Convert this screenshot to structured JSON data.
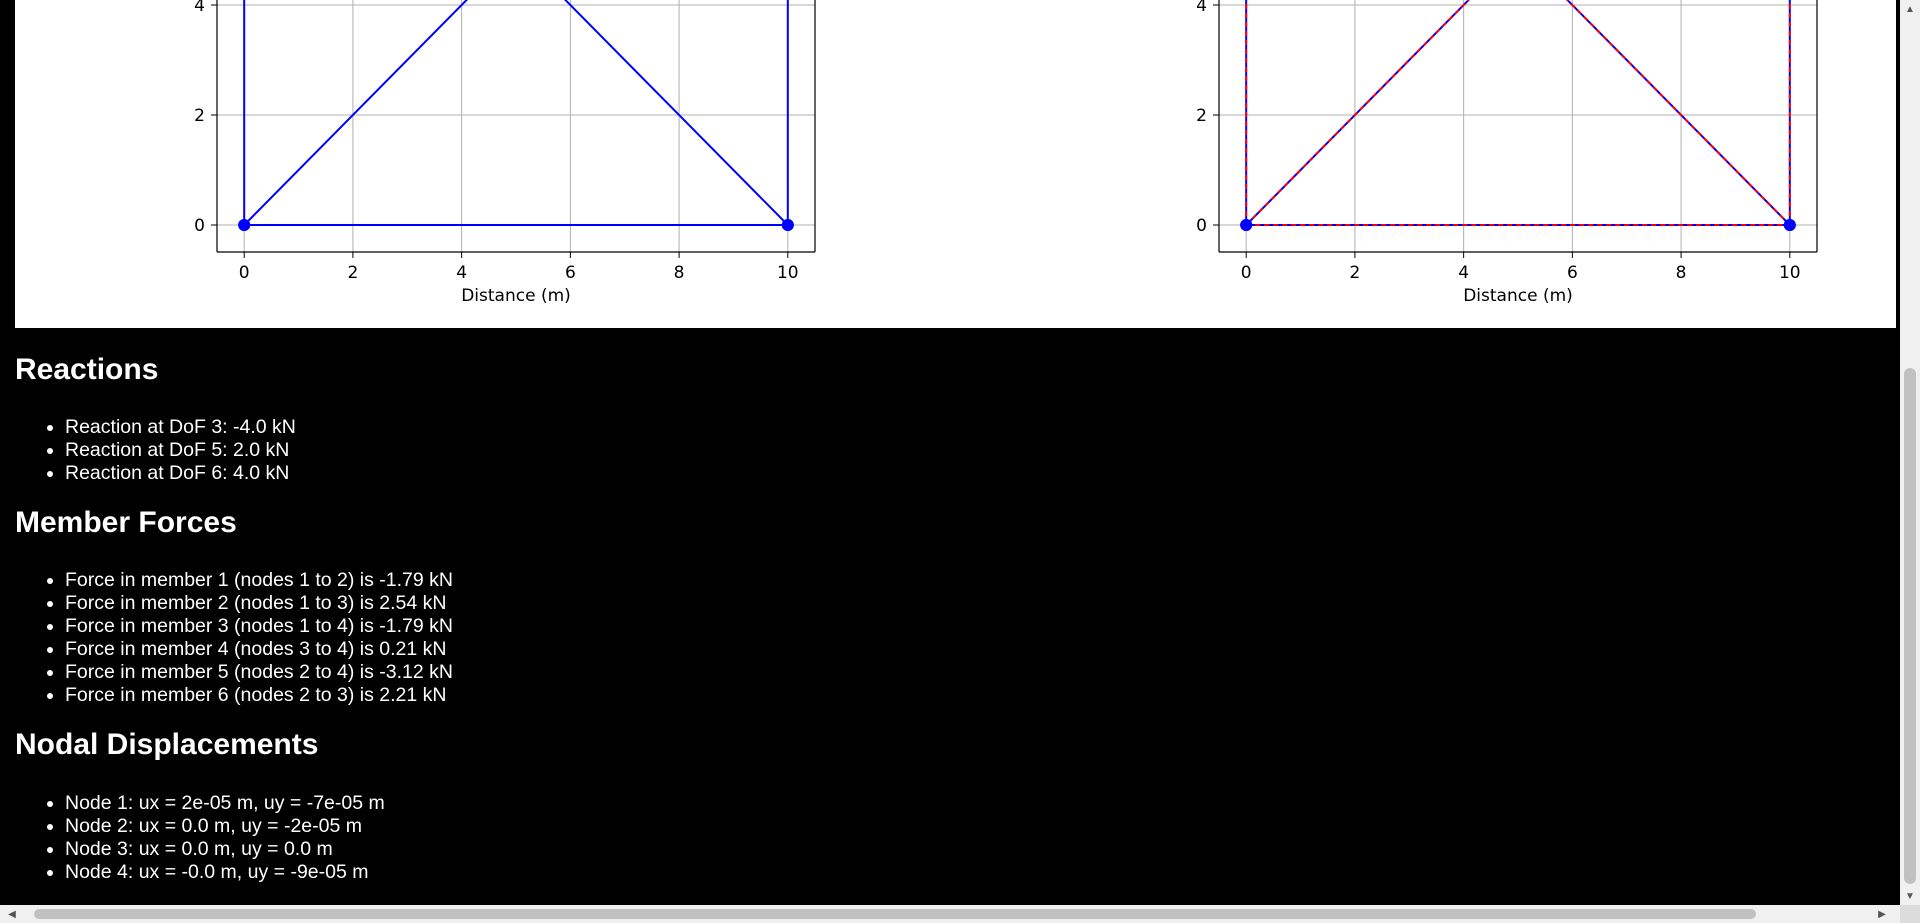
{
  "chart_data": [
    {
      "type": "line",
      "title": "",
      "xlabel": "Distance (m)",
      "ylabel": "",
      "xlim": [
        -0.5,
        10.5
      ],
      "xticks": [
        0,
        2,
        4,
        6,
        8,
        10
      ],
      "yticks": [
        0,
        2,
        4
      ],
      "grid": true,
      "series": [
        {
          "color": "#0000ff",
          "style": "solid",
          "segments": [
            [
              [
                0,
                0
              ],
              [
                10,
                0
              ]
            ],
            [
              [
                0,
                0
              ],
              [
                0,
                4.5
              ]
            ],
            [
              [
                10,
                0
              ],
              [
                10,
                4.5
              ]
            ],
            [
              [
                0,
                0
              ],
              [
                4.3,
                4.3
              ]
            ],
            [
              [
                10,
                0
              ],
              [
                5.7,
                4.3
              ]
            ]
          ],
          "nodes": [
            [
              0,
              0
            ],
            [
              10,
              0
            ]
          ]
        }
      ]
    },
    {
      "type": "line",
      "title": "",
      "xlabel": "Distance (m)",
      "ylabel": "",
      "xlim": [
        -0.5,
        10.5
      ],
      "xticks": [
        0,
        2,
        4,
        6,
        8,
        10
      ],
      "yticks": [
        0,
        2,
        4
      ],
      "grid": true,
      "series": [
        {
          "color": "#0000ff",
          "style": "solid",
          "segments": [
            [
              [
                0,
                0
              ],
              [
                10,
                0
              ]
            ],
            [
              [
                0,
                0
              ],
              [
                0,
                4.5
              ]
            ],
            [
              [
                10,
                0
              ],
              [
                10,
                4.5
              ]
            ],
            [
              [
                0,
                0
              ],
              [
                4.3,
                4.3
              ]
            ],
            [
              [
                10,
                0
              ],
              [
                5.7,
                4.3
              ]
            ]
          ],
          "nodes": [
            [
              0,
              0
            ],
            [
              10,
              0
            ]
          ]
        },
        {
          "color": "#ff0000",
          "style": "dashed",
          "segments": [
            [
              [
                0,
                0
              ],
              [
                10,
                0
              ]
            ],
            [
              [
                0,
                0
              ],
              [
                0,
                4.5
              ]
            ],
            [
              [
                10,
                0
              ],
              [
                10,
                4.5
              ]
            ],
            [
              [
                0,
                0
              ],
              [
                4.3,
                4.3
              ]
            ],
            [
              [
                10,
                0
              ],
              [
                5.7,
                4.3
              ]
            ]
          ]
        }
      ]
    }
  ],
  "reactions": {
    "heading": "Reactions",
    "items": [
      "Reaction at DoF 3: -4.0 kN",
      "Reaction at DoF 5: 2.0 kN",
      "Reaction at DoF 6: 4.0 kN"
    ]
  },
  "member_forces": {
    "heading": "Member Forces",
    "items": [
      "Force in member 1 (nodes 1 to 2) is -1.79 kN",
      "Force in member 2 (nodes 1 to 3) is 2.54 kN",
      "Force in member 3 (nodes 1 to 4) is -1.79 kN",
      "Force in member 4 (nodes 3 to 4) is 0.21 kN",
      "Force in member 5 (nodes 2 to 4) is -3.12 kN",
      "Force in member 6 (nodes 2 to 3) is 2.21 kN"
    ]
  },
  "nodal_displacements": {
    "heading": "Nodal Displacements",
    "items": [
      "Node 1: ux = 2e-05 m, uy = -7e-05 m",
      "Node 2: ux = 0.0 m, uy = -2e-05 m",
      "Node 3: ux = 0.0 m, uy = 0.0 m",
      "Node 4: ux = -0.0 m, uy = -9e-05 m"
    ]
  }
}
